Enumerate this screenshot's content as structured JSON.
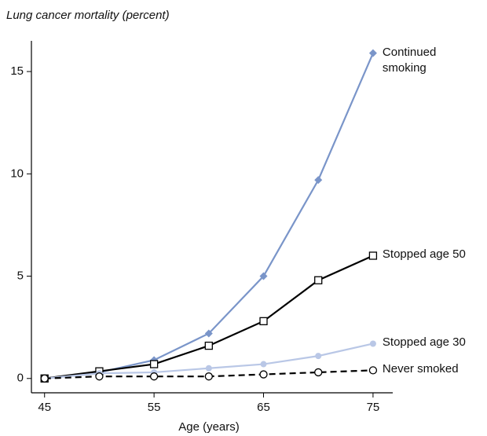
{
  "chart_data": {
    "type": "line",
    "title": "Lung cancer mortality (percent)",
    "xlabel": "Age (years)",
    "x": [
      45,
      50,
      55,
      60,
      65,
      70,
      75
    ],
    "series": [
      {
        "name": "Continued smoking",
        "color": "#7a95c9",
        "marker": "diamond",
        "dash": false,
        "values": [
          0,
          0.3,
          0.9,
          2.2,
          5.0,
          9.7,
          15.9
        ]
      },
      {
        "name": "Stopped age 50",
        "color": "#000000",
        "marker": "square-open",
        "dash": false,
        "values": [
          0,
          0.35,
          0.7,
          1.6,
          2.8,
          4.8,
          6.0
        ]
      },
      {
        "name": "Stopped age 30",
        "color": "#b9c7e6",
        "marker": "circle",
        "dash": false,
        "values": [
          0,
          0.25,
          0.3,
          0.5,
          0.7,
          1.1,
          1.7
        ]
      },
      {
        "name": "Never smoked",
        "color": "#000000",
        "marker": "circle-open",
        "dash": true,
        "values": [
          0,
          0.1,
          0.1,
          0.1,
          0.2,
          0.3,
          0.4
        ]
      }
    ],
    "xlim": [
      43.8,
      76.8
    ],
    "xticks": [
      45,
      55,
      65,
      75
    ],
    "ylim": [
      -0.7,
      16.5
    ],
    "yticks": [
      0,
      5,
      10,
      15
    ]
  }
}
